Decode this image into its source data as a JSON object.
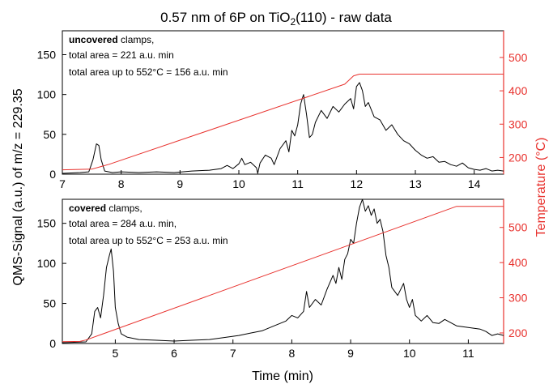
{
  "figure": {
    "title_main": "0.57 nm of 6P on TiO",
    "title_sub": "2",
    "title_tail": "(110) - raw data",
    "ylabel": "QMS-Signal (a.u.) of m/z = 229.35",
    "xlabel": "Time (min)",
    "ylabel_right": "Temperature (°C)",
    "colors": {
      "signal": "#000000",
      "temperature": "#e8322e"
    }
  },
  "chart_data": [
    {
      "type": "line",
      "panel": "top",
      "annotation": {
        "bold": "uncovered",
        "rest": " clamps,",
        "line2": "total area = 221 a.u. min",
        "line3": "total area up to 552°C = 156 a.u. min"
      },
      "xlim": [
        7,
        14.5
      ],
      "ylim": [
        0,
        180
      ],
      "y2lim": [
        150,
        580
      ],
      "x_ticks": [
        7,
        8,
        9,
        10,
        11,
        12,
        13,
        14
      ],
      "y_ticks": [
        0,
        50,
        100,
        150
      ],
      "y2_ticks": [
        200,
        300,
        400,
        500
      ],
      "series": [
        {
          "axis": "left",
          "points": [
            [
              7.0,
              1
            ],
            [
              7.3,
              2
            ],
            [
              7.45,
              3
            ],
            [
              7.52,
              18
            ],
            [
              7.58,
              38
            ],
            [
              7.62,
              36
            ],
            [
              7.66,
              18
            ],
            [
              7.72,
              4
            ],
            [
              7.85,
              2
            ],
            [
              8.0,
              3
            ],
            [
              8.3,
              2
            ],
            [
              8.6,
              3
            ],
            [
              8.9,
              2
            ],
            [
              9.2,
              4
            ],
            [
              9.5,
              5
            ],
            [
              9.7,
              7
            ],
            [
              9.8,
              11
            ],
            [
              9.9,
              7
            ],
            [
              10.0,
              13
            ],
            [
              10.05,
              20
            ],
            [
              10.1,
              12
            ],
            [
              10.2,
              15
            ],
            [
              10.3,
              8
            ],
            [
              10.32,
              1
            ],
            [
              10.36,
              14
            ],
            [
              10.45,
              24
            ],
            [
              10.55,
              20
            ],
            [
              10.6,
              12
            ],
            [
              10.7,
              32
            ],
            [
              10.8,
              42
            ],
            [
              10.85,
              28
            ],
            [
              10.9,
              55
            ],
            [
              10.95,
              48
            ],
            [
              11.0,
              62
            ],
            [
              11.05,
              88
            ],
            [
              11.1,
              100
            ],
            [
              11.15,
              75
            ],
            [
              11.2,
              46
            ],
            [
              11.25,
              50
            ],
            [
              11.3,
              65
            ],
            [
              11.4,
              80
            ],
            [
              11.5,
              70
            ],
            [
              11.6,
              85
            ],
            [
              11.7,
              78
            ],
            [
              11.8,
              88
            ],
            [
              11.9,
              95
            ],
            [
              11.95,
              82
            ],
            [
              12.0,
              110
            ],
            [
              12.05,
              115
            ],
            [
              12.1,
              105
            ],
            [
              12.15,
              85
            ],
            [
              12.2,
              90
            ],
            [
              12.3,
              72
            ],
            [
              12.4,
              68
            ],
            [
              12.5,
              55
            ],
            [
              12.6,
              62
            ],
            [
              12.7,
              50
            ],
            [
              12.8,
              42
            ],
            [
              12.9,
              38
            ],
            [
              13.0,
              30
            ],
            [
              13.1,
              24
            ],
            [
              13.2,
              20
            ],
            [
              13.3,
              22
            ],
            [
              13.4,
              15
            ],
            [
              13.5,
              16
            ],
            [
              13.6,
              12
            ],
            [
              13.7,
              10
            ],
            [
              13.8,
              14
            ],
            [
              13.9,
              8
            ],
            [
              14.0,
              6
            ],
            [
              14.1,
              5
            ],
            [
              14.2,
              7
            ],
            [
              14.3,
              4
            ],
            [
              14.4,
              5
            ],
            [
              14.5,
              4
            ]
          ]
        },
        {
          "axis": "right",
          "points": [
            [
              7.0,
              163
            ],
            [
              7.5,
              165
            ],
            [
              7.8,
              180
            ],
            [
              11.8,
              420
            ],
            [
              11.95,
              445
            ],
            [
              12.05,
              450
            ],
            [
              14.5,
              450
            ]
          ]
        }
      ]
    },
    {
      "type": "line",
      "panel": "bottom",
      "annotation": {
        "bold": "covered",
        "rest": " clamps,",
        "line2": "total area =  284 a.u. min,",
        "line3": "total area up to 552°C = 253 a.u. min"
      },
      "xlim": [
        4.1,
        11.6
      ],
      "ylim": [
        0,
        180
      ],
      "y2lim": [
        170,
        580
      ],
      "x_ticks": [
        5,
        6,
        7,
        8,
        9,
        10,
        11
      ],
      "y_ticks": [
        0,
        50,
        100,
        150
      ],
      "y2_ticks": [
        200,
        300,
        400,
        500
      ],
      "series": [
        {
          "axis": "left",
          "points": [
            [
              4.1,
              1
            ],
            [
              4.5,
              2
            ],
            [
              4.6,
              12
            ],
            [
              4.65,
              40
            ],
            [
              4.7,
              45
            ],
            [
              4.75,
              32
            ],
            [
              4.8,
              60
            ],
            [
              4.85,
              95
            ],
            [
              4.9,
              110
            ],
            [
              4.93,
              118
            ],
            [
              4.97,
              90
            ],
            [
              5.0,
              45
            ],
            [
              5.05,
              25
            ],
            [
              5.1,
              12
            ],
            [
              5.2,
              8
            ],
            [
              5.4,
              5
            ],
            [
              5.7,
              4
            ],
            [
              6.0,
              3
            ],
            [
              6.3,
              4
            ],
            [
              6.6,
              5
            ],
            [
              6.9,
              8
            ],
            [
              7.1,
              10
            ],
            [
              7.3,
              13
            ],
            [
              7.5,
              16
            ],
            [
              7.7,
              22
            ],
            [
              7.9,
              28
            ],
            [
              8.0,
              35
            ],
            [
              8.1,
              32
            ],
            [
              8.2,
              40
            ],
            [
              8.25,
              65
            ],
            [
              8.3,
              45
            ],
            [
              8.4,
              55
            ],
            [
              8.5,
              48
            ],
            [
              8.6,
              68
            ],
            [
              8.7,
              85
            ],
            [
              8.75,
              75
            ],
            [
              8.8,
              95
            ],
            [
              8.85,
              80
            ],
            [
              8.9,
              105
            ],
            [
              8.95,
              112
            ],
            [
              9.0,
              130
            ],
            [
              9.05,
              125
            ],
            [
              9.1,
              150
            ],
            [
              9.15,
              170
            ],
            [
              9.2,
              180
            ],
            [
              9.25,
              165
            ],
            [
              9.3,
              172
            ],
            [
              9.35,
              160
            ],
            [
              9.4,
              168
            ],
            [
              9.45,
              150
            ],
            [
              9.5,
              155
            ],
            [
              9.55,
              140
            ],
            [
              9.6,
              110
            ],
            [
              9.65,
              95
            ],
            [
              9.7,
              70
            ],
            [
              9.8,
              60
            ],
            [
              9.9,
              75
            ],
            [
              9.95,
              55
            ],
            [
              10.0,
              45
            ],
            [
              10.05,
              55
            ],
            [
              10.1,
              35
            ],
            [
              10.2,
              28
            ],
            [
              10.3,
              35
            ],
            [
              10.4,
              26
            ],
            [
              10.5,
              25
            ],
            [
              10.6,
              30
            ],
            [
              10.8,
              22
            ],
            [
              11.0,
              20
            ],
            [
              11.2,
              18
            ],
            [
              11.3,
              15
            ],
            [
              11.4,
              10
            ],
            [
              11.5,
              12
            ],
            [
              11.6,
              10
            ]
          ]
        },
        {
          "axis": "right",
          "points": [
            [
              4.1,
              175
            ],
            [
              4.4,
              176
            ],
            [
              4.5,
              180
            ],
            [
              10.8,
              560
            ],
            [
              10.9,
              560
            ],
            [
              11.6,
              560
            ]
          ]
        }
      ]
    }
  ]
}
